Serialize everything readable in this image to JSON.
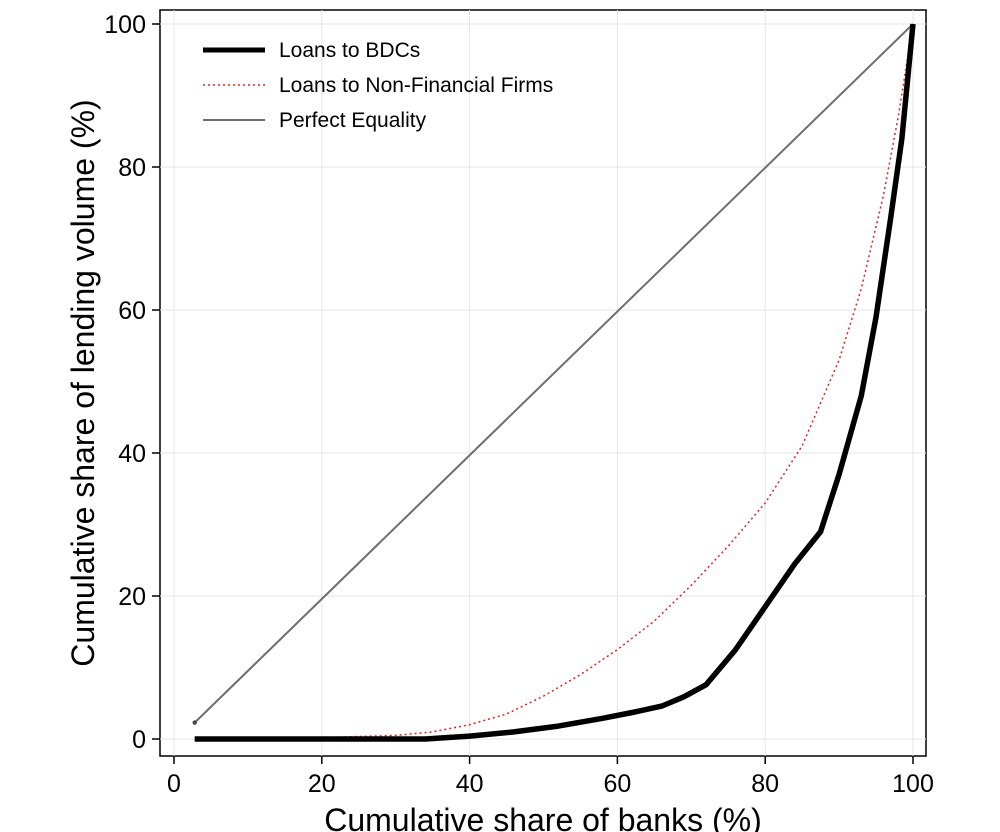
{
  "chart_data": {
    "type": "line",
    "xlabel": "Cumulative share of banks (%)",
    "ylabel": "Cumulative share of lending volume (%)",
    "xlim": [
      0,
      100
    ],
    "ylim": [
      0,
      100
    ],
    "xticks": [
      0,
      20,
      40,
      60,
      80,
      100
    ],
    "yticks": [
      0,
      20,
      40,
      60,
      80,
      100
    ],
    "grid": true,
    "legend_position": "top-left",
    "series": [
      {
        "name": "Loans to BDCs",
        "color": "#000000",
        "style": "solid-thick",
        "x": [
          2.8,
          10,
          20,
          34,
          40,
          46,
          52,
          58,
          62,
          66,
          69,
          72,
          76,
          80,
          84,
          87.5,
          90,
          93,
          95,
          97,
          98.5,
          100
        ],
        "y": [
          0,
          0,
          0,
          0,
          0.4,
          1.0,
          1.8,
          2.9,
          3.7,
          4.6,
          5.9,
          7.6,
          12.5,
          18.5,
          24.5,
          29,
          37,
          48,
          59,
          73,
          84,
          100
        ]
      },
      {
        "name": "Loans to Non-Financial Firms",
        "color": "#e8201d",
        "style": "dotted",
        "x": [
          2.8,
          10,
          20,
          30,
          35,
          40,
          45,
          50,
          55,
          60,
          65,
          70,
          75,
          80,
          85,
          90,
          93,
          96,
          98,
          100
        ],
        "y": [
          0.1,
          0.1,
          0.2,
          0.5,
          1.0,
          2.0,
          3.5,
          6.0,
          9.0,
          12.5,
          16.5,
          21.5,
          27,
          33,
          41,
          53,
          63,
          76,
          87,
          100
        ]
      },
      {
        "name": "Perfect Equality",
        "color": "#6e6e6e",
        "style": "solid-thin",
        "x": [
          2.8,
          100
        ],
        "y": [
          2.3,
          100
        ]
      }
    ]
  }
}
